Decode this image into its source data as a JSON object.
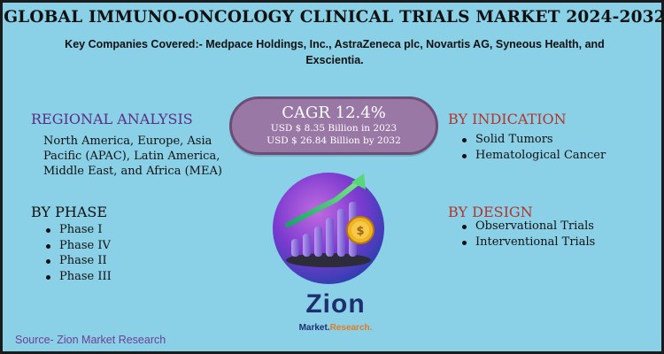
{
  "title": "GLOBAL IMMUNO-ONCOLOGY CLINICAL TRIALS MARKET 2024-2032",
  "companies": "Key Companies Covered:- Medpace Holdings, Inc., AstraZeneca plc, Novartis AG, Syneous Health, and Exscientia.",
  "cagr": {
    "title": "CAGR 12.4%",
    "line1": "USD $ 8.35 Billion in 2023",
    "line2": "USD $ 26.84 Billion  by 2032"
  },
  "regional": {
    "heading": "REGIONAL ANALYSIS",
    "text": "North America, Europe, Asia Pacific (APAC), Latin America, Middle East, and Africa (MEA)"
  },
  "phase": {
    "heading": "BY PHASE",
    "items": [
      "Phase I",
      "Phase IV",
      "Phase II",
      "Phase III"
    ]
  },
  "indication": {
    "heading": "BY INDICATION",
    "items": [
      "Solid Tumors",
      "Hematological Cancer"
    ]
  },
  "design": {
    "heading": "BY DESIGN",
    "items": [
      "Observational Trials",
      "Interventional Trials"
    ]
  },
  "logo": {
    "name": "Zion",
    "sub_a": "Market.",
    "sub_b": "Research."
  },
  "source": "Source- Zion Market Research",
  "colors": {
    "background": "#8ad0e6",
    "purple_heading": "#5a2e83",
    "red_heading": "#b2362e",
    "cagr_box": "#9a78a6",
    "source_text": "#6d3f98"
  }
}
